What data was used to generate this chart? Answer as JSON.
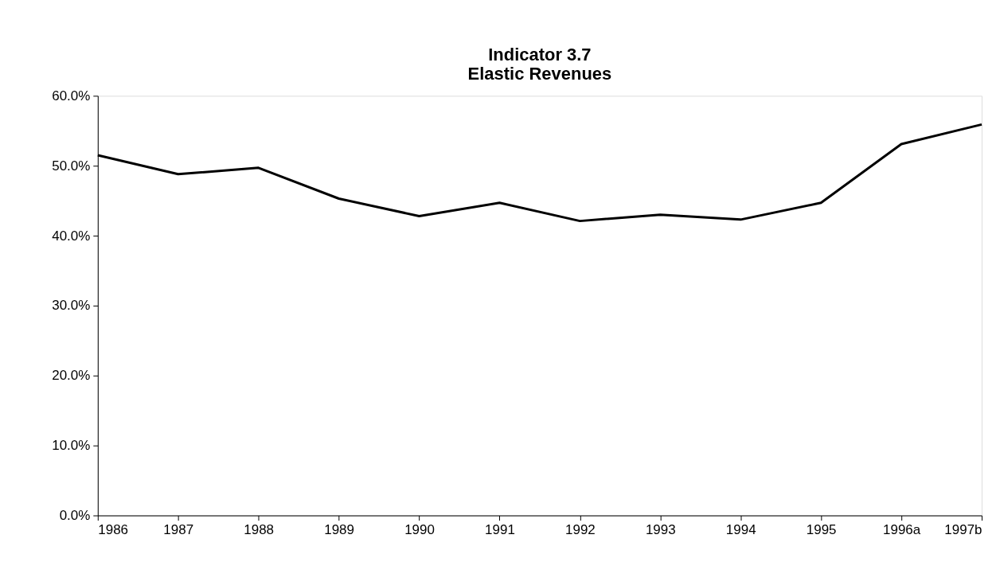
{
  "chart_data": {
    "type": "line",
    "title": [
      "Indicator 3.7",
      "Elastic Revenues"
    ],
    "categories": [
      "1986",
      "1987",
      "1988",
      "1989",
      "1990",
      "1991",
      "1992",
      "1993",
      "1994",
      "1995",
      "1996a",
      "1997b"
    ],
    "series": [
      {
        "color": "#000000",
        "values": [
          51.5,
          48.8,
          49.7,
          45.3,
          42.8,
          44.7,
          42.1,
          43.0,
          42.3,
          44.7,
          53.1,
          55.9
        ]
      }
    ],
    "ylim": [
      0,
      60
    ],
    "yticks": [
      {
        "value": 0,
        "label": "0.0%"
      },
      {
        "value": 10,
        "label": "10.0%"
      },
      {
        "value": 20,
        "label": "20.0%"
      },
      {
        "value": 30,
        "label": "30.0%"
      },
      {
        "value": 40,
        "label": "40.0%"
      },
      {
        "value": 50,
        "label": "50.0%"
      },
      {
        "value": 60,
        "label": "60.0%"
      }
    ],
    "grid": false,
    "legend": false,
    "marker": "none",
    "line_style": "solid"
  }
}
